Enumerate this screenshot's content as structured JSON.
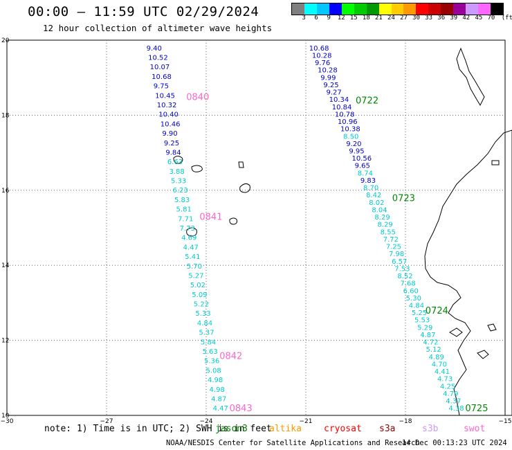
{
  "header": {
    "title": "00:00 – 11:59 UTC 02/29/2024",
    "subtitle": "12 hour collection of altimeter wave heights"
  },
  "legend": {
    "unit": "(ft)",
    "swatches": [
      {
        "label": "3",
        "color": "#7f7f7f"
      },
      {
        "label": "6",
        "color": "#00ffff"
      },
      {
        "label": "9",
        "color": "#00c8ff"
      },
      {
        "label": "12",
        "color": "#0000ff"
      },
      {
        "label": "15",
        "color": "#00ff00"
      },
      {
        "label": "18",
        "color": "#00cc00"
      },
      {
        "label": "21",
        "color": "#009900"
      },
      {
        "label": "24",
        "color": "#ffff00"
      },
      {
        "label": "27",
        "color": "#ffcc00"
      },
      {
        "label": "30",
        "color": "#ff9900"
      },
      {
        "label": "33",
        "color": "#ff0000"
      },
      {
        "label": "36",
        "color": "#cc0000"
      },
      {
        "label": "39",
        "color": "#990000"
      },
      {
        "label": "42",
        "color": "#990099"
      },
      {
        "label": "45",
        "color": "#cc99ff"
      },
      {
        "label": "70",
        "color": "#ff66ff"
      },
      {
        "label": "",
        "color": "#000000"
      }
    ]
  },
  "axes": {
    "lon_ticks": [
      "−30",
      "−27",
      "−24",
      "−21",
      "−18",
      "−15"
    ],
    "lat_ticks": [
      "20",
      "18",
      "16",
      "14",
      "12",
      "10"
    ],
    "lon_range": [
      -30,
      -15
    ],
    "lat_range": [
      10,
      20
    ]
  },
  "tracks": {
    "west": {
      "lon_top": -25.8,
      "lat_top": 19.8,
      "lon_bottom": -23.8,
      "lat_bottom": 10.2,
      "values": [
        {
          "v": "9.40",
          "c": "#0000cc"
        },
        {
          "v": "10.52",
          "c": "#0000cc"
        },
        {
          "v": "10.07",
          "c": "#0000cc"
        },
        {
          "v": "10.68",
          "c": "#0000cc"
        },
        {
          "v": "9.75",
          "c": "#0000cc"
        },
        {
          "v": "10.45",
          "c": "#0000cc"
        },
        {
          "v": "10.32",
          "c": "#0000cc"
        },
        {
          "v": "10.40",
          "c": "#0000cc"
        },
        {
          "v": "10.46",
          "c": "#0000cc"
        },
        {
          "v": "9.90",
          "c": "#0000cc"
        },
        {
          "v": "9.25",
          "c": "#0000cc"
        },
        {
          "v": "9.84",
          "c": "#0000cc"
        },
        {
          "v": "6.63",
          "c": "#00cccc"
        },
        {
          "v": "3.88",
          "c": "#00cccc"
        },
        {
          "v": "5.33",
          "c": "#00cccc"
        },
        {
          "v": "6.23",
          "c": "#00cccc"
        },
        {
          "v": "5.83",
          "c": "#00cccc"
        },
        {
          "v": "5.81",
          "c": "#00cccc"
        },
        {
          "v": "7.71",
          "c": "#00cccc"
        },
        {
          "v": "7.73",
          "c": "#00cccc"
        },
        {
          "v": "4.69",
          "c": "#00cccc"
        },
        {
          "v": "4.47",
          "c": "#00cccc"
        },
        {
          "v": "5.41",
          "c": "#00cccc"
        },
        {
          "v": "5.70",
          "c": "#00cccc"
        },
        {
          "v": "5.27",
          "c": "#00cccc"
        },
        {
          "v": "5.02",
          "c": "#00cccc"
        },
        {
          "v": "5.09",
          "c": "#00cccc"
        },
        {
          "v": "5.22",
          "c": "#00cccc"
        },
        {
          "v": "5.33",
          "c": "#00cccc"
        },
        {
          "v": "4.84",
          "c": "#00cccc"
        },
        {
          "v": "5.37",
          "c": "#00cccc"
        },
        {
          "v": "5.84",
          "c": "#00cccc"
        },
        {
          "v": "5.63",
          "c": "#00cccc"
        },
        {
          "v": "5.36",
          "c": "#00cccc"
        },
        {
          "v": "5.08",
          "c": "#00cccc"
        },
        {
          "v": "4.98",
          "c": "#00cccc"
        },
        {
          "v": "4.98",
          "c": "#00cccc"
        },
        {
          "v": "4.87",
          "c": "#00cccc"
        },
        {
          "v": "4.47",
          "c": "#00cccc"
        }
      ]
    },
    "east": {
      "lon_top": -20.9,
      "lat_top": 19.8,
      "lon_bottom": -16.7,
      "lat_bottom": 10.2,
      "values": [
        {
          "v": "10.68",
          "c": "#0000cc"
        },
        {
          "v": "10.28",
          "c": "#0000cc"
        },
        {
          "v": "9.76",
          "c": "#0000cc"
        },
        {
          "v": "10.28",
          "c": "#0000cc"
        },
        {
          "v": "9.99",
          "c": "#0000cc"
        },
        {
          "v": "9.25",
          "c": "#0000cc"
        },
        {
          "v": "9.27",
          "c": "#0000cc"
        },
        {
          "v": "10.34",
          "c": "#0000cc"
        },
        {
          "v": "10.84",
          "c": "#0000cc"
        },
        {
          "v": "10.78",
          "c": "#0000cc"
        },
        {
          "v": "10.96",
          "c": "#0000cc"
        },
        {
          "v": "10.38",
          "c": "#0000cc"
        },
        {
          "v": "8.50",
          "c": "#00cccc"
        },
        {
          "v": "9.20",
          "c": "#0000cc"
        },
        {
          "v": "9.95",
          "c": "#0000cc"
        },
        {
          "v": "10.56",
          "c": "#0000cc"
        },
        {
          "v": "9.65",
          "c": "#0000cc"
        },
        {
          "v": "8.74",
          "c": "#00cccc"
        },
        {
          "v": "9.83",
          "c": "#0000cc"
        },
        {
          "v": "8.70",
          "c": "#00cccc"
        },
        {
          "v": "8.42",
          "c": "#00cccc"
        },
        {
          "v": "8.02",
          "c": "#00cccc"
        },
        {
          "v": "8.04",
          "c": "#00cccc"
        },
        {
          "v": "8.29",
          "c": "#00cccc"
        },
        {
          "v": "8.29",
          "c": "#00cccc"
        },
        {
          "v": "8.55",
          "c": "#00cccc"
        },
        {
          "v": "7.72",
          "c": "#00cccc"
        },
        {
          "v": "7.25",
          "c": "#00cccc"
        },
        {
          "v": "7.98",
          "c": "#00cccc"
        },
        {
          "v": "6.57",
          "c": "#00cccc"
        },
        {
          "v": "7.53",
          "c": "#00cccc"
        },
        {
          "v": "8.52",
          "c": "#00cccc"
        },
        {
          "v": "7.68",
          "c": "#00cccc"
        },
        {
          "v": "6.60",
          "c": "#00cccc"
        },
        {
          "v": "5.30",
          "c": "#00cccc"
        },
        {
          "v": "4.84",
          "c": "#00cccc"
        },
        {
          "v": "5.25",
          "c": "#00cccc"
        },
        {
          "v": "5.53",
          "c": "#00cccc"
        },
        {
          "v": "5.29",
          "c": "#00cccc"
        },
        {
          "v": "4.87",
          "c": "#00cccc"
        },
        {
          "v": "4.72",
          "c": "#00cccc"
        },
        {
          "v": "5.12",
          "c": "#00cccc"
        },
        {
          "v": "4.89",
          "c": "#00cccc"
        },
        {
          "v": "4.70",
          "c": "#00cccc"
        },
        {
          "v": "4.41",
          "c": "#00cccc"
        },
        {
          "v": "4.73",
          "c": "#00cccc"
        },
        {
          "v": "4.25",
          "c": "#00cccc"
        },
        {
          "v": "4.79",
          "c": "#00cccc"
        },
        {
          "v": "4.37",
          "c": "#00cccc"
        },
        {
          "v": "4.38",
          "c": "#00cccc"
        }
      ]
    }
  },
  "time_labels": [
    {
      "text": "0840",
      "lon": -24.6,
      "lat": 18.5,
      "color": "#ff66cc"
    },
    {
      "text": "0841",
      "lon": -24.2,
      "lat": 15.3,
      "color": "#ff66cc"
    },
    {
      "text": "0842",
      "lon": -23.6,
      "lat": 11.6,
      "color": "#ff66cc"
    },
    {
      "text": "0843",
      "lon": -23.3,
      "lat": 10.2,
      "color": "#ff66cc"
    },
    {
      "text": "0722",
      "lon": -19.5,
      "lat": 18.4,
      "color": "#008800"
    },
    {
      "text": "0723",
      "lon": -18.4,
      "lat": 15.8,
      "color": "#008800"
    },
    {
      "text": "0724",
      "lon": -17.4,
      "lat": 12.8,
      "color": "#008800"
    },
    {
      "text": "0725",
      "lon": -16.2,
      "lat": 10.2,
      "color": "#008800"
    }
  ],
  "footer": {
    "note": "note: 1) Time is in UTC; 2) SWH is in feet",
    "satellites": [
      {
        "name": "jason3",
        "color": "#008800"
      },
      {
        "name": "altika",
        "color": "#ff9900"
      },
      {
        "name": "cryosat",
        "color": "#ff0000"
      },
      {
        "name": "s3a",
        "color": "#990000"
      },
      {
        "name": "s3b",
        "color": "#cc99ff"
      },
      {
        "name": "swot",
        "color": "#ff66cc"
      }
    ],
    "credit": "NOAA/NESDIS Center for Satellite Applications and Research",
    "timestamp": "14 Dec 00:13:23 UTC 2024"
  }
}
